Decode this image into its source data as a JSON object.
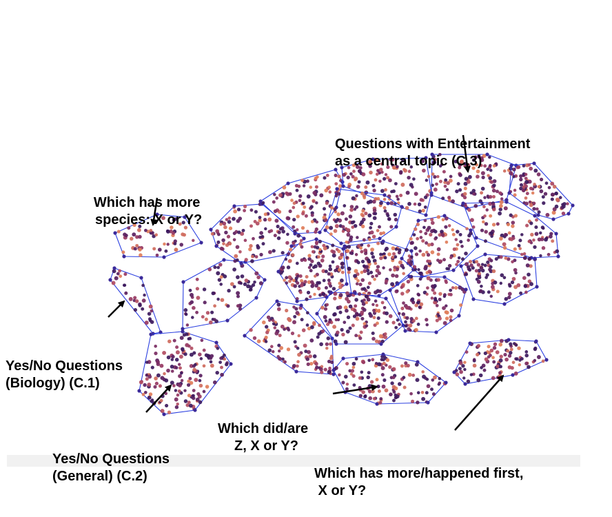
{
  "labels": {
    "c3": [
      "Questions with Entertainment",
      "as a central topic (C.3)"
    ],
    "species": [
      "Which has more",
      "species: X or Y?"
    ],
    "c1": [
      "Yes/No Questions",
      "(Biology) (C.1)"
    ],
    "c2": [
      "Yes/No Questions",
      "(General) (C.2)"
    ],
    "which_did": [
      "Which did/are",
      "Z, X or Y?"
    ],
    "more_happened": [
      "Which has more/happened first,",
      " X or Y?"
    ]
  },
  "colors": {
    "hull_stroke": "#2b3fe0",
    "vertex": "#3b2a9a",
    "point_palette": [
      "#3d1a5e",
      "#5a2060",
      "#7a2b62",
      "#973a63",
      "#b24d62",
      "#cf6b5d",
      "#e07d5a"
    ]
  },
  "cluster_ids": [
    "species",
    "c1",
    "c2",
    "fan",
    "mid-left",
    "lower-left",
    "top-left",
    "top-mid",
    "c3",
    "far-right",
    "right-mid",
    "center-left",
    "center",
    "center-right",
    "right-lower",
    "center-low",
    "lower-center",
    "lower-mid",
    "bottom-mid",
    "bottom-right"
  ]
}
